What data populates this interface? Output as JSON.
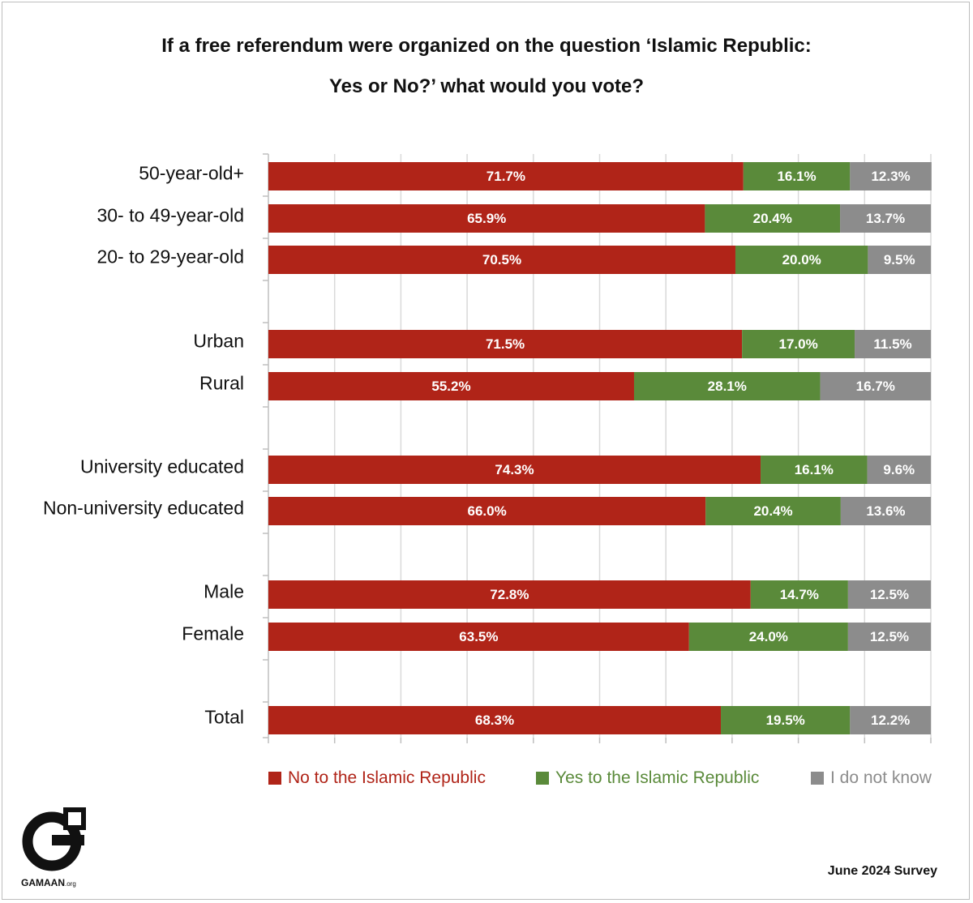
{
  "title": {
    "line1": "If a free referendum were organized on the question ‘Islamic Republic:",
    "line2": "Yes or No?’ what would you vote?"
  },
  "chart_data": {
    "type": "bar",
    "orientation": "horizontal",
    "stacked": true,
    "title": "If a free referendum were organized on the question ‘Islamic Republic: Yes or No?’ what would you vote?",
    "categories": [
      "50-year-old+",
      "30- to 49-year-old",
      "20- to 29-year-old",
      "Urban",
      "Rural",
      "University educated",
      "Non-university educated",
      "Male",
      "Female",
      "Total"
    ],
    "series": [
      {
        "name": "No to the Islamic Republic",
        "color": "#b02418",
        "values": [
          71.7,
          65.9,
          70.5,
          71.5,
          55.2,
          74.3,
          66.0,
          72.8,
          63.5,
          68.3
        ]
      },
      {
        "name": "Yes to the Islamic Republic",
        "color": "#5a8a3a",
        "values": [
          16.1,
          20.4,
          20.0,
          17.0,
          28.1,
          16.1,
          20.4,
          14.7,
          24.0,
          19.5
        ]
      },
      {
        "name": "I do not know",
        "color": "#8c8c8c",
        "values": [
          12.3,
          13.7,
          9.5,
          11.5,
          16.7,
          9.6,
          13.6,
          12.5,
          12.5,
          12.2
        ]
      }
    ],
    "value_labels": [
      [
        "71.7%",
        "65.9%",
        "70.5%",
        "71.5%",
        "55.2%",
        "74.3%",
        "66.0%",
        "72.8%",
        "63.5%",
        "68.3%"
      ],
      [
        "16.1%",
        "20.4%",
        "20.0%",
        "17.0%",
        "28.1%",
        "16.1%",
        "20.4%",
        "14.7%",
        "24.0%",
        "19.5%"
      ],
      [
        "12.3%",
        "13.7%",
        "9.5%",
        "11.5%",
        "16.7%",
        "9.6%",
        "13.6%",
        "12.5%",
        "12.5%",
        "12.2%"
      ]
    ],
    "xlim": [
      0,
      100
    ],
    "grid": true,
    "legend_position": "bottom"
  },
  "legend": [
    {
      "label": "No to the Islamic Republic",
      "color": "#b02418"
    },
    {
      "label": "Yes to the Islamic Republic",
      "color": "#5a8a3a"
    },
    {
      "label": "I do not know",
      "color": "#8c8c8c"
    }
  ],
  "logo": {
    "name": "GAMAAN",
    "suffix": ".org"
  },
  "footnote": "June 2024 Survey"
}
